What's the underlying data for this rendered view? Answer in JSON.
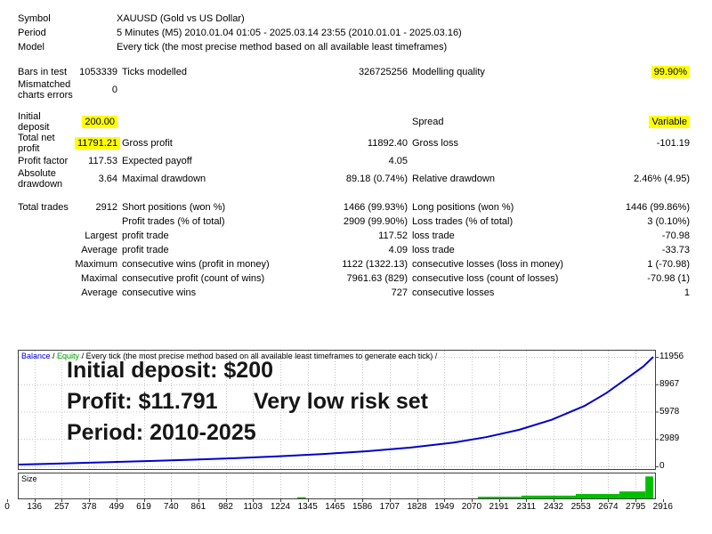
{
  "report": {
    "info_rows": [
      {
        "label": "Symbol",
        "value": "XAUUSD (Gold vs US Dollar)"
      },
      {
        "label": "Period",
        "value": "5 Minutes (M5) 2010.01.04 01:05 - 2025.03.14 23:55 (2010.01.01 - 2025.03.16)"
      },
      {
        "label": "Model",
        "value": "Every tick (the most precise method based on all available least timeframes)"
      }
    ],
    "stat_rows": [
      {
        "cells": [
          "Bars in test",
          "1053339",
          "Ticks modelled",
          "326725256",
          "Modelling quality",
          "99.90%"
        ],
        "hl": [
          5
        ],
        "gap": true
      },
      {
        "cells": [
          "Mismatched\ncharts errors",
          "0",
          "",
          "",
          "",
          ""
        ],
        "tall": true
      },
      {
        "cells": [
          "Initial\ndeposit",
          "200.00",
          "",
          "",
          "Spread",
          "Variable"
        ],
        "hl": [
          1,
          5
        ],
        "tall": true,
        "gap": true
      },
      {
        "cells": [
          "Total net\nprofit",
          "11791.21",
          "Gross profit",
          "11892.40",
          "Gross loss",
          "-101.19"
        ],
        "hl": [
          1
        ],
        "tall": true
      },
      {
        "cells": [
          "Profit factor",
          "117.53",
          "Expected payoff",
          "4.05",
          "",
          ""
        ]
      },
      {
        "cells": [
          "Absolute\ndrawdown",
          "3.64",
          "Maximal drawdown",
          "89.18 (0.74%)",
          "Relative drawdown",
          "2.46% (4.95)"
        ],
        "tall": true
      },
      {
        "cells": [
          "Total trades",
          "2912",
          "Short positions (won %)",
          "1466 (99.93%)",
          "Long positions (won %)",
          "1446 (99.86%)"
        ],
        "gap": true
      },
      {
        "cells": [
          "",
          "",
          "Profit trades (% of total)",
          "2909 (99.90%)",
          "Loss trades (% of total)",
          "3 (0.10%)"
        ]
      },
      {
        "cells": [
          "",
          "Largest",
          "profit trade",
          "117.52",
          "loss trade",
          "-70.98"
        ]
      },
      {
        "cells": [
          "",
          "Average",
          "profit trade",
          "4.09",
          "loss trade",
          "-33.73"
        ]
      },
      {
        "cells": [
          "",
          "Maximum",
          "consecutive wins (profit in money)",
          "1122 (1322.13)",
          "consecutive losses (loss in money)",
          "1 (-70.98)"
        ]
      },
      {
        "cells": [
          "",
          "Maximal",
          "consecutive profit (count of wins)",
          "7961.63 (829)",
          "consecutive loss (count of losses)",
          "-70.98 (1)"
        ]
      },
      {
        "cells": [
          "",
          "Average",
          "consecutive wins",
          "727",
          "consecutive losses",
          "1"
        ]
      }
    ]
  },
  "chart_data": {
    "type": "line",
    "title": "Balance / Equity tester graph",
    "legend": {
      "balance": "Balance",
      "equity": "Equity",
      "sep1": " / ",
      "sep2": " / ",
      "method": "Every tick (the most precise method based on all available least timeframes to generate each tick) /"
    },
    "annotations": {
      "line1": "Initial deposit: $200",
      "line2": "Profit: $11.791",
      "line3": "Very low risk set",
      "line4": "Period: 2010-2025"
    },
    "y_ticks": [
      0,
      2989,
      5978,
      8967,
      11956
    ],
    "x_ticks": [
      0,
      136,
      257,
      378,
      499,
      619,
      740,
      861,
      982,
      1103,
      1224,
      1345,
      1465,
      1586,
      1707,
      1828,
      1949,
      2070,
      2191,
      2311,
      2432,
      2553,
      2674,
      2795,
      2916
    ],
    "xlim": [
      0,
      2916
    ],
    "ylim": [
      0,
      11956
    ],
    "grid": true,
    "legend_position": "top-left",
    "balance_series": {
      "name": "Balance",
      "x": [
        0,
        200,
        400,
        600,
        800,
        1000,
        1200,
        1400,
        1600,
        1800,
        2000,
        2150,
        2300,
        2450,
        2600,
        2700,
        2800,
        2870,
        2916
      ],
      "y": [
        200,
        320,
        450,
        580,
        730,
        900,
        1100,
        1350,
        1650,
        2050,
        2600,
        3200,
        4000,
        5100,
        6600,
        8000,
        9700,
        10900,
        11956
      ]
    },
    "size_panel": {
      "label": "Size",
      "bars": [
        {
          "x0": 1280,
          "x1": 1320,
          "h": 0.05
        },
        {
          "x0": 2110,
          "x1": 2310,
          "h": 0.07
        },
        {
          "x0": 2310,
          "x1": 2560,
          "h": 0.12
        },
        {
          "x0": 2560,
          "x1": 2760,
          "h": 0.19
        },
        {
          "x0": 2760,
          "x1": 2880,
          "h": 0.3
        },
        {
          "x0": 2880,
          "x1": 2916,
          "h": 0.95
        }
      ]
    },
    "colors": {
      "balance_line": "#0000CC",
      "balance_label": "#0000E0",
      "equity_label": "#00A000",
      "size_bar": "#00BE00",
      "highlight": "#FFFF00",
      "grid": "#C4C4C4",
      "border": "#404040"
    }
  }
}
